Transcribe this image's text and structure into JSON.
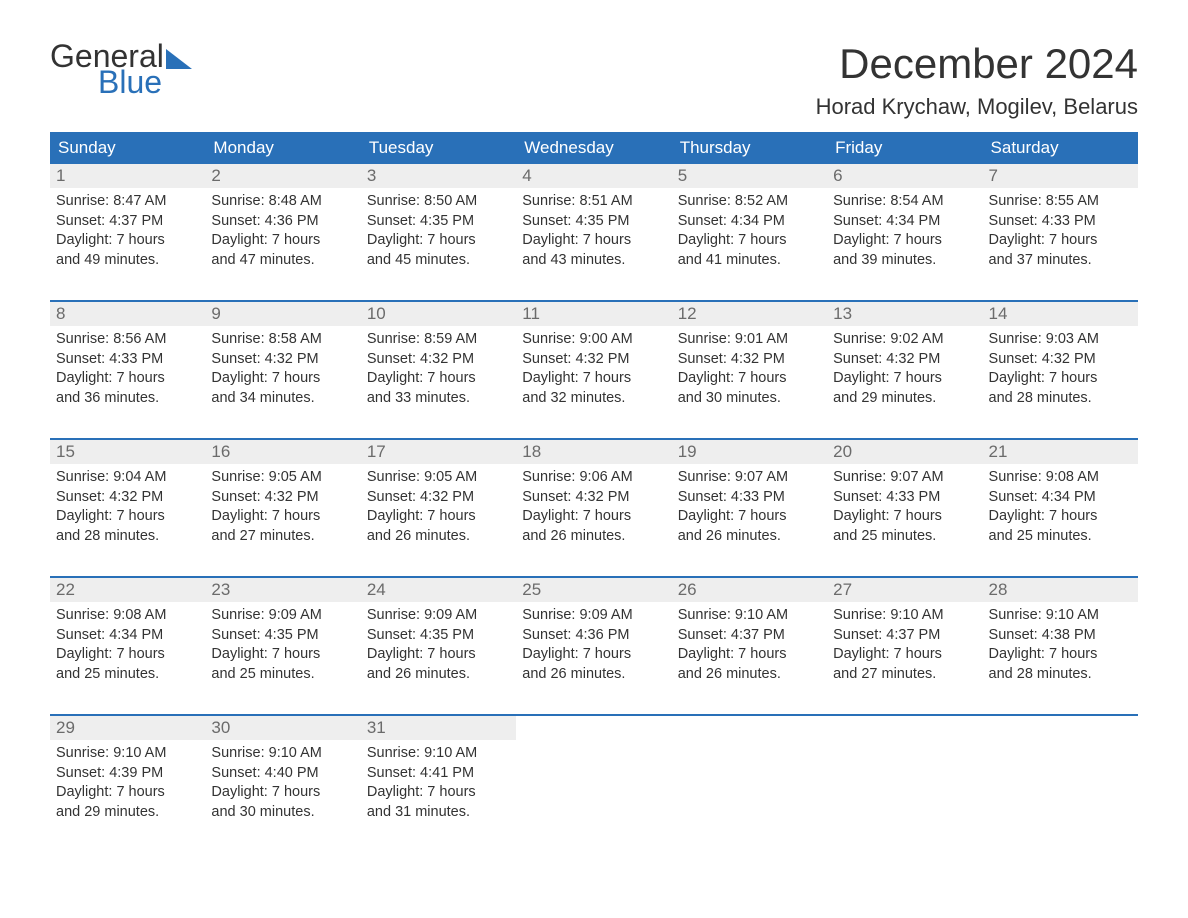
{
  "logo": {
    "text1": "General",
    "text2": "Blue",
    "color_dark": "#333333",
    "color_blue": "#2970b8"
  },
  "title": "December 2024",
  "location": "Horad Krychaw, Mogilev, Belarus",
  "colors": {
    "header_bg": "#2970b8",
    "header_text": "#ffffff",
    "daynum_bg": "#eeeeee",
    "daynum_text": "#6b6b6b",
    "week_border": "#2970b8",
    "body_text": "#333333",
    "page_bg": "#ffffff"
  },
  "typography": {
    "title_fontsize": 42,
    "location_fontsize": 22,
    "dayheader_fontsize": 17,
    "daynum_fontsize": 17,
    "body_fontsize": 14.5,
    "logo_fontsize": 32
  },
  "day_headers": [
    "Sunday",
    "Monday",
    "Tuesday",
    "Wednesday",
    "Thursday",
    "Friday",
    "Saturday"
  ],
  "weeks": [
    [
      {
        "num": "1",
        "sunrise": "Sunrise: 8:47 AM",
        "sunset": "Sunset: 4:37 PM",
        "dl1": "Daylight: 7 hours",
        "dl2": "and 49 minutes."
      },
      {
        "num": "2",
        "sunrise": "Sunrise: 8:48 AM",
        "sunset": "Sunset: 4:36 PM",
        "dl1": "Daylight: 7 hours",
        "dl2": "and 47 minutes."
      },
      {
        "num": "3",
        "sunrise": "Sunrise: 8:50 AM",
        "sunset": "Sunset: 4:35 PM",
        "dl1": "Daylight: 7 hours",
        "dl2": "and 45 minutes."
      },
      {
        "num": "4",
        "sunrise": "Sunrise: 8:51 AM",
        "sunset": "Sunset: 4:35 PM",
        "dl1": "Daylight: 7 hours",
        "dl2": "and 43 minutes."
      },
      {
        "num": "5",
        "sunrise": "Sunrise: 8:52 AM",
        "sunset": "Sunset: 4:34 PM",
        "dl1": "Daylight: 7 hours",
        "dl2": "and 41 minutes."
      },
      {
        "num": "6",
        "sunrise": "Sunrise: 8:54 AM",
        "sunset": "Sunset: 4:34 PM",
        "dl1": "Daylight: 7 hours",
        "dl2": "and 39 minutes."
      },
      {
        "num": "7",
        "sunrise": "Sunrise: 8:55 AM",
        "sunset": "Sunset: 4:33 PM",
        "dl1": "Daylight: 7 hours",
        "dl2": "and 37 minutes."
      }
    ],
    [
      {
        "num": "8",
        "sunrise": "Sunrise: 8:56 AM",
        "sunset": "Sunset: 4:33 PM",
        "dl1": "Daylight: 7 hours",
        "dl2": "and 36 minutes."
      },
      {
        "num": "9",
        "sunrise": "Sunrise: 8:58 AM",
        "sunset": "Sunset: 4:32 PM",
        "dl1": "Daylight: 7 hours",
        "dl2": "and 34 minutes."
      },
      {
        "num": "10",
        "sunrise": "Sunrise: 8:59 AM",
        "sunset": "Sunset: 4:32 PM",
        "dl1": "Daylight: 7 hours",
        "dl2": "and 33 minutes."
      },
      {
        "num": "11",
        "sunrise": "Sunrise: 9:00 AM",
        "sunset": "Sunset: 4:32 PM",
        "dl1": "Daylight: 7 hours",
        "dl2": "and 32 minutes."
      },
      {
        "num": "12",
        "sunrise": "Sunrise: 9:01 AM",
        "sunset": "Sunset: 4:32 PM",
        "dl1": "Daylight: 7 hours",
        "dl2": "and 30 minutes."
      },
      {
        "num": "13",
        "sunrise": "Sunrise: 9:02 AM",
        "sunset": "Sunset: 4:32 PM",
        "dl1": "Daylight: 7 hours",
        "dl2": "and 29 minutes."
      },
      {
        "num": "14",
        "sunrise": "Sunrise: 9:03 AM",
        "sunset": "Sunset: 4:32 PM",
        "dl1": "Daylight: 7 hours",
        "dl2": "and 28 minutes."
      }
    ],
    [
      {
        "num": "15",
        "sunrise": "Sunrise: 9:04 AM",
        "sunset": "Sunset: 4:32 PM",
        "dl1": "Daylight: 7 hours",
        "dl2": "and 28 minutes."
      },
      {
        "num": "16",
        "sunrise": "Sunrise: 9:05 AM",
        "sunset": "Sunset: 4:32 PM",
        "dl1": "Daylight: 7 hours",
        "dl2": "and 27 minutes."
      },
      {
        "num": "17",
        "sunrise": "Sunrise: 9:05 AM",
        "sunset": "Sunset: 4:32 PM",
        "dl1": "Daylight: 7 hours",
        "dl2": "and 26 minutes."
      },
      {
        "num": "18",
        "sunrise": "Sunrise: 9:06 AM",
        "sunset": "Sunset: 4:32 PM",
        "dl1": "Daylight: 7 hours",
        "dl2": "and 26 minutes."
      },
      {
        "num": "19",
        "sunrise": "Sunrise: 9:07 AM",
        "sunset": "Sunset: 4:33 PM",
        "dl1": "Daylight: 7 hours",
        "dl2": "and 26 minutes."
      },
      {
        "num": "20",
        "sunrise": "Sunrise: 9:07 AM",
        "sunset": "Sunset: 4:33 PM",
        "dl1": "Daylight: 7 hours",
        "dl2": "and 25 minutes."
      },
      {
        "num": "21",
        "sunrise": "Sunrise: 9:08 AM",
        "sunset": "Sunset: 4:34 PM",
        "dl1": "Daylight: 7 hours",
        "dl2": "and 25 minutes."
      }
    ],
    [
      {
        "num": "22",
        "sunrise": "Sunrise: 9:08 AM",
        "sunset": "Sunset: 4:34 PM",
        "dl1": "Daylight: 7 hours",
        "dl2": "and 25 minutes."
      },
      {
        "num": "23",
        "sunrise": "Sunrise: 9:09 AM",
        "sunset": "Sunset: 4:35 PM",
        "dl1": "Daylight: 7 hours",
        "dl2": "and 25 minutes."
      },
      {
        "num": "24",
        "sunrise": "Sunrise: 9:09 AM",
        "sunset": "Sunset: 4:35 PM",
        "dl1": "Daylight: 7 hours",
        "dl2": "and 26 minutes."
      },
      {
        "num": "25",
        "sunrise": "Sunrise: 9:09 AM",
        "sunset": "Sunset: 4:36 PM",
        "dl1": "Daylight: 7 hours",
        "dl2": "and 26 minutes."
      },
      {
        "num": "26",
        "sunrise": "Sunrise: 9:10 AM",
        "sunset": "Sunset: 4:37 PM",
        "dl1": "Daylight: 7 hours",
        "dl2": "and 26 minutes."
      },
      {
        "num": "27",
        "sunrise": "Sunrise: 9:10 AM",
        "sunset": "Sunset: 4:37 PM",
        "dl1": "Daylight: 7 hours",
        "dl2": "and 27 minutes."
      },
      {
        "num": "28",
        "sunrise": "Sunrise: 9:10 AM",
        "sunset": "Sunset: 4:38 PM",
        "dl1": "Daylight: 7 hours",
        "dl2": "and 28 minutes."
      }
    ],
    [
      {
        "num": "29",
        "sunrise": "Sunrise: 9:10 AM",
        "sunset": "Sunset: 4:39 PM",
        "dl1": "Daylight: 7 hours",
        "dl2": "and 29 minutes."
      },
      {
        "num": "30",
        "sunrise": "Sunrise: 9:10 AM",
        "sunset": "Sunset: 4:40 PM",
        "dl1": "Daylight: 7 hours",
        "dl2": "and 30 minutes."
      },
      {
        "num": "31",
        "sunrise": "Sunrise: 9:10 AM",
        "sunset": "Sunset: 4:41 PM",
        "dl1": "Daylight: 7 hours",
        "dl2": "and 31 minutes."
      },
      null,
      null,
      null,
      null
    ]
  ]
}
